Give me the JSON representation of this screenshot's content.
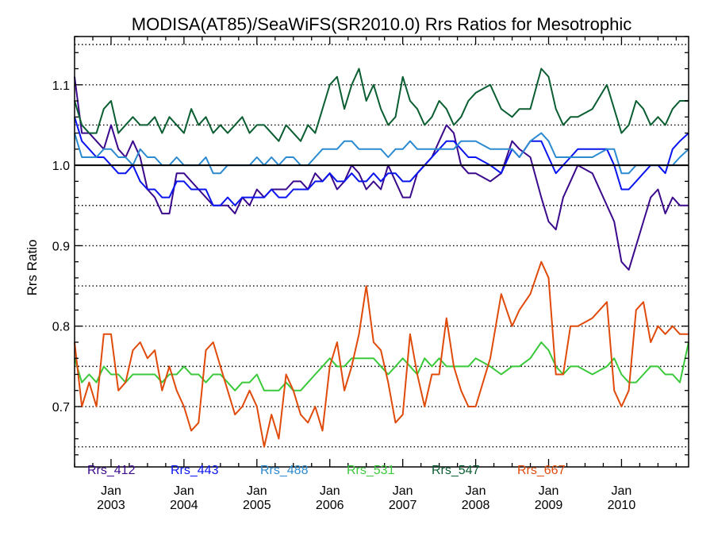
{
  "chart_data": {
    "type": "line",
    "title": "MODISA(AT85)/SeaWiFS(SR2010.0)  Rrs Ratios for Mesotrophic",
    "ylabel": "Rrs Ratio",
    "xlabel": "",
    "xlim": [
      2002.5,
      2010.92
    ],
    "ylim": [
      0.625,
      1.16
    ],
    "y_ticks": [
      0.7,
      0.8,
      0.9,
      1.0,
      1.1
    ],
    "y_tick_labels": [
      "0.7",
      "0.8",
      "0.9",
      "1.0",
      "1.1"
    ],
    "x_ticks": [
      2003,
      2004,
      2005,
      2006,
      2007,
      2008,
      2009,
      2010
    ],
    "x_tick_labels": [
      {
        "month": "Jan",
        "year": "2003"
      },
      {
        "month": "Jan",
        "year": "2004"
      },
      {
        "month": "Jan",
        "year": "2005"
      },
      {
        "month": "Jan",
        "year": "2006"
      },
      {
        "month": "Jan",
        "year": "2007"
      },
      {
        "month": "Jan",
        "year": "2008"
      },
      {
        "month": "Jan",
        "year": "2009"
      },
      {
        "month": "Jan",
        "year": "2010"
      }
    ],
    "grid_y": [
      0.65,
      0.7,
      0.75,
      0.8,
      0.85,
      0.9,
      0.95,
      1.05,
      1.1,
      1.15
    ],
    "reference_line": 1.0,
    "legend_position": "bottom",
    "series": [
      {
        "name": "Rrs_412",
        "color": "#3b0a8c",
        "x": [
          2002.5,
          2002.6,
          2002.7,
          2002.8,
          2002.9,
          2003.0,
          2003.1,
          2003.2,
          2003.3,
          2003.4,
          2003.5,
          2003.6,
          2003.7,
          2003.8,
          2003.9,
          2004.0,
          2004.1,
          2004.2,
          2004.3,
          2004.4,
          2004.5,
          2004.6,
          2004.7,
          2004.8,
          2004.9,
          2005.0,
          2005.1,
          2005.2,
          2005.3,
          2005.4,
          2005.5,
          2005.6,
          2005.7,
          2005.8,
          2005.9,
          2006.0,
          2006.1,
          2006.2,
          2006.3,
          2006.4,
          2006.5,
          2006.6,
          2006.7,
          2006.8,
          2006.9,
          2007.0,
          2007.1,
          2007.2,
          2007.3,
          2007.4,
          2007.5,
          2007.6,
          2007.7,
          2007.8,
          2007.9,
          2008.0,
          2008.2,
          2008.35,
          2008.5,
          2008.6,
          2008.75,
          2008.9,
          2009.0,
          2009.1,
          2009.2,
          2009.3,
          2009.4,
          2009.6,
          2009.8,
          2009.9,
          2010.0,
          2010.1,
          2010.2,
          2010.3,
          2010.4,
          2010.5,
          2010.6,
          2010.7,
          2010.8,
          2010.92
        ],
        "values": [
          1.11,
          1.04,
          1.04,
          1.03,
          1.02,
          1.05,
          1.02,
          1.01,
          1.03,
          1.01,
          0.97,
          0.96,
          0.94,
          0.94,
          0.99,
          0.99,
          0.98,
          0.97,
          0.96,
          0.95,
          0.95,
          0.95,
          0.94,
          0.96,
          0.95,
          0.97,
          0.96,
          0.97,
          0.97,
          0.97,
          0.98,
          0.98,
          0.97,
          0.99,
          0.98,
          0.99,
          0.97,
          0.98,
          1.0,
          0.99,
          0.97,
          0.98,
          0.97,
          1.0,
          0.98,
          0.96,
          0.96,
          0.99,
          1.0,
          1.01,
          1.03,
          1.05,
          1.04,
          1.0,
          0.99,
          0.99,
          0.98,
          0.99,
          1.03,
          1.02,
          1.01,
          0.96,
          0.93,
          0.92,
          0.96,
          0.98,
          1.0,
          0.99,
          0.95,
          0.93,
          0.88,
          0.87,
          0.9,
          0.93,
          0.96,
          0.97,
          0.94,
          0.96,
          0.95,
          0.95
        ]
      },
      {
        "name": "Rrs_443",
        "color": "#0a14ee",
        "x": [
          2002.5,
          2002.6,
          2002.7,
          2002.8,
          2002.9,
          2003.0,
          2003.1,
          2003.2,
          2003.3,
          2003.4,
          2003.5,
          2003.6,
          2003.7,
          2003.8,
          2003.9,
          2004.0,
          2004.1,
          2004.2,
          2004.3,
          2004.4,
          2004.5,
          2004.6,
          2004.7,
          2004.8,
          2004.9,
          2005.0,
          2005.1,
          2005.2,
          2005.3,
          2005.4,
          2005.5,
          2005.6,
          2005.7,
          2005.8,
          2005.9,
          2006.0,
          2006.1,
          2006.2,
          2006.3,
          2006.4,
          2006.5,
          2006.6,
          2006.7,
          2006.8,
          2006.9,
          2007.0,
          2007.1,
          2007.2,
          2007.3,
          2007.4,
          2007.5,
          2007.6,
          2007.7,
          2007.8,
          2007.9,
          2008.0,
          2008.2,
          2008.35,
          2008.5,
          2008.6,
          2008.75,
          2008.9,
          2009.0,
          2009.1,
          2009.2,
          2009.3,
          2009.4,
          2009.6,
          2009.8,
          2009.9,
          2010.0,
          2010.1,
          2010.2,
          2010.3,
          2010.4,
          2010.5,
          2010.6,
          2010.7,
          2010.8,
          2010.92
        ],
        "values": [
          1.06,
          1.03,
          1.02,
          1.01,
          1.01,
          1.0,
          0.99,
          0.99,
          1.0,
          0.98,
          0.97,
          0.97,
          0.96,
          0.96,
          0.98,
          0.98,
          0.97,
          0.97,
          0.97,
          0.95,
          0.95,
          0.96,
          0.95,
          0.96,
          0.96,
          0.96,
          0.96,
          0.97,
          0.96,
          0.96,
          0.97,
          0.97,
          0.97,
          0.98,
          0.98,
          0.99,
          0.98,
          0.98,
          0.99,
          0.98,
          0.98,
          0.99,
          0.98,
          0.99,
          0.99,
          0.98,
          0.98,
          0.99,
          1.0,
          1.01,
          1.02,
          1.03,
          1.03,
          1.02,
          1.01,
          1.01,
          1.0,
          0.99,
          1.02,
          1.01,
          1.03,
          1.03,
          1.01,
          0.99,
          1.0,
          1.01,
          1.02,
          1.02,
          1.02,
          1.0,
          0.97,
          0.97,
          0.98,
          0.99,
          1.0,
          1.0,
          0.99,
          1.02,
          1.03,
          1.04
        ]
      },
      {
        "name": "Rrs_488",
        "color": "#2c8bd0",
        "x": [
          2002.5,
          2002.6,
          2002.7,
          2002.8,
          2002.9,
          2003.0,
          2003.1,
          2003.2,
          2003.3,
          2003.4,
          2003.5,
          2003.6,
          2003.7,
          2003.8,
          2003.9,
          2004.0,
          2004.1,
          2004.2,
          2004.3,
          2004.4,
          2004.5,
          2004.6,
          2004.7,
          2004.8,
          2004.9,
          2005.0,
          2005.1,
          2005.2,
          2005.3,
          2005.4,
          2005.5,
          2005.6,
          2005.7,
          2005.8,
          2005.9,
          2006.0,
          2006.1,
          2006.2,
          2006.3,
          2006.4,
          2006.5,
          2006.6,
          2006.7,
          2006.8,
          2006.9,
          2007.0,
          2007.1,
          2007.2,
          2007.3,
          2007.4,
          2007.5,
          2007.6,
          2007.7,
          2007.8,
          2007.9,
          2008.0,
          2008.2,
          2008.35,
          2008.5,
          2008.6,
          2008.75,
          2008.9,
          2009.0,
          2009.1,
          2009.2,
          2009.3,
          2009.4,
          2009.6,
          2009.8,
          2009.9,
          2010.0,
          2010.1,
          2010.2,
          2010.3,
          2010.4,
          2010.5,
          2010.6,
          2010.7,
          2010.8,
          2010.92
        ],
        "values": [
          1.04,
          1.01,
          1.01,
          1.01,
          1.02,
          1.02,
          1.01,
          1.01,
          1.0,
          1.02,
          1.01,
          1.01,
          1.0,
          1.0,
          1.01,
          1.0,
          1.0,
          1.0,
          1.01,
          0.99,
          0.99,
          1.0,
          1.0,
          1.0,
          1.0,
          1.01,
          1.0,
          1.01,
          1.0,
          1.01,
          1.01,
          1.0,
          1.0,
          1.01,
          1.02,
          1.02,
          1.02,
          1.03,
          1.03,
          1.02,
          1.02,
          1.02,
          1.02,
          1.01,
          1.02,
          1.02,
          1.03,
          1.02,
          1.02,
          1.02,
          1.02,
          1.02,
          1.02,
          1.03,
          1.03,
          1.03,
          1.02,
          1.02,
          1.02,
          1.01,
          1.03,
          1.04,
          1.03,
          1.01,
          1.01,
          1.01,
          1.01,
          1.01,
          1.02,
          1.02,
          0.99,
          0.99,
          1.0,
          1.0,
          1.0,
          1.0,
          1.0,
          1.0,
          1.01,
          1.02
        ]
      },
      {
        "name": "Rrs_531",
        "color": "#3ac93a",
        "x": [
          2002.5,
          2002.6,
          2002.7,
          2002.8,
          2002.9,
          2003.0,
          2003.1,
          2003.2,
          2003.3,
          2003.4,
          2003.5,
          2003.6,
          2003.7,
          2003.8,
          2003.9,
          2004.0,
          2004.1,
          2004.2,
          2004.3,
          2004.4,
          2004.5,
          2004.6,
          2004.7,
          2004.8,
          2004.9,
          2005.0,
          2005.1,
          2005.2,
          2005.3,
          2005.4,
          2005.5,
          2005.6,
          2005.7,
          2005.8,
          2005.9,
          2006.0,
          2006.1,
          2006.2,
          2006.3,
          2006.4,
          2006.5,
          2006.6,
          2006.7,
          2006.8,
          2006.9,
          2007.0,
          2007.1,
          2007.2,
          2007.3,
          2007.4,
          2007.5,
          2007.6,
          2007.7,
          2007.8,
          2007.9,
          2008.0,
          2008.2,
          2008.35,
          2008.5,
          2008.6,
          2008.75,
          2008.9,
          2009.0,
          2009.1,
          2009.2,
          2009.3,
          2009.4,
          2009.6,
          2009.8,
          2009.9,
          2010.0,
          2010.1,
          2010.2,
          2010.3,
          2010.4,
          2010.5,
          2010.6,
          2010.7,
          2010.8,
          2010.92
        ],
        "values": [
          0.76,
          0.73,
          0.74,
          0.73,
          0.75,
          0.74,
          0.74,
          0.73,
          0.74,
          0.74,
          0.74,
          0.74,
          0.73,
          0.74,
          0.74,
          0.75,
          0.74,
          0.74,
          0.73,
          0.74,
          0.74,
          0.73,
          0.72,
          0.73,
          0.73,
          0.74,
          0.72,
          0.72,
          0.72,
          0.73,
          0.72,
          0.72,
          0.73,
          0.74,
          0.75,
          0.76,
          0.75,
          0.75,
          0.76,
          0.76,
          0.76,
          0.76,
          0.75,
          0.74,
          0.75,
          0.76,
          0.75,
          0.74,
          0.76,
          0.75,
          0.76,
          0.75,
          0.75,
          0.75,
          0.75,
          0.76,
          0.75,
          0.74,
          0.75,
          0.75,
          0.76,
          0.78,
          0.77,
          0.75,
          0.74,
          0.75,
          0.75,
          0.74,
          0.75,
          0.76,
          0.74,
          0.73,
          0.73,
          0.74,
          0.75,
          0.75,
          0.74,
          0.74,
          0.73,
          0.78
        ]
      },
      {
        "name": "Rrs_547",
        "color": "#0b5e32",
        "x": [
          2002.5,
          2002.6,
          2002.7,
          2002.8,
          2002.9,
          2003.0,
          2003.1,
          2003.2,
          2003.3,
          2003.4,
          2003.5,
          2003.6,
          2003.7,
          2003.8,
          2003.9,
          2004.0,
          2004.1,
          2004.2,
          2004.3,
          2004.4,
          2004.5,
          2004.6,
          2004.7,
          2004.8,
          2004.9,
          2005.0,
          2005.1,
          2005.2,
          2005.3,
          2005.4,
          2005.5,
          2005.6,
          2005.7,
          2005.8,
          2005.9,
          2006.0,
          2006.1,
          2006.2,
          2006.3,
          2006.4,
          2006.5,
          2006.6,
          2006.7,
          2006.8,
          2006.9,
          2007.0,
          2007.1,
          2007.2,
          2007.3,
          2007.4,
          2007.5,
          2007.6,
          2007.7,
          2007.8,
          2007.9,
          2008.0,
          2008.2,
          2008.35,
          2008.5,
          2008.6,
          2008.75,
          2008.9,
          2009.0,
          2009.1,
          2009.2,
          2009.3,
          2009.4,
          2009.6,
          2009.8,
          2009.9,
          2010.0,
          2010.1,
          2010.2,
          2010.3,
          2010.4,
          2010.5,
          2010.6,
          2010.7,
          2010.8,
          2010.92
        ],
        "values": [
          1.08,
          1.05,
          1.04,
          1.04,
          1.07,
          1.08,
          1.04,
          1.05,
          1.06,
          1.05,
          1.05,
          1.06,
          1.04,
          1.06,
          1.05,
          1.04,
          1.07,
          1.05,
          1.06,
          1.04,
          1.05,
          1.04,
          1.05,
          1.06,
          1.04,
          1.05,
          1.05,
          1.04,
          1.03,
          1.05,
          1.04,
          1.03,
          1.05,
          1.04,
          1.07,
          1.1,
          1.11,
          1.07,
          1.1,
          1.12,
          1.08,
          1.1,
          1.07,
          1.05,
          1.06,
          1.11,
          1.08,
          1.07,
          1.05,
          1.06,
          1.08,
          1.07,
          1.05,
          1.06,
          1.08,
          1.09,
          1.1,
          1.07,
          1.06,
          1.07,
          1.07,
          1.12,
          1.11,
          1.07,
          1.05,
          1.06,
          1.06,
          1.07,
          1.1,
          1.07,
          1.04,
          1.05,
          1.08,
          1.07,
          1.05,
          1.06,
          1.05,
          1.07,
          1.08,
          1.08
        ]
      },
      {
        "name": "Rrs_667",
        "color": "#e04a0a",
        "x": [
          2002.5,
          2002.6,
          2002.7,
          2002.8,
          2002.9,
          2003.0,
          2003.1,
          2003.2,
          2003.3,
          2003.4,
          2003.5,
          2003.6,
          2003.7,
          2003.8,
          2003.9,
          2004.0,
          2004.1,
          2004.2,
          2004.3,
          2004.4,
          2004.5,
          2004.6,
          2004.7,
          2004.8,
          2004.9,
          2005.0,
          2005.1,
          2005.2,
          2005.3,
          2005.4,
          2005.5,
          2005.6,
          2005.7,
          2005.8,
          2005.9,
          2006.0,
          2006.1,
          2006.2,
          2006.3,
          2006.4,
          2006.5,
          2006.6,
          2006.7,
          2006.8,
          2006.9,
          2007.0,
          2007.1,
          2007.2,
          2007.3,
          2007.4,
          2007.5,
          2007.6,
          2007.7,
          2007.8,
          2007.9,
          2008.0,
          2008.2,
          2008.35,
          2008.5,
          2008.6,
          2008.75,
          2008.9,
          2009.0,
          2009.1,
          2009.2,
          2009.3,
          2009.4,
          2009.6,
          2009.8,
          2009.9,
          2010.0,
          2010.1,
          2010.2,
          2010.3,
          2010.4,
          2010.5,
          2010.6,
          2010.7,
          2010.8,
          2010.92
        ],
        "values": [
          0.78,
          0.7,
          0.73,
          0.7,
          0.79,
          0.79,
          0.72,
          0.73,
          0.77,
          0.78,
          0.76,
          0.77,
          0.72,
          0.75,
          0.72,
          0.7,
          0.67,
          0.68,
          0.77,
          0.78,
          0.75,
          0.72,
          0.69,
          0.7,
          0.72,
          0.7,
          0.65,
          0.69,
          0.66,
          0.74,
          0.72,
          0.69,
          0.68,
          0.7,
          0.67,
          0.75,
          0.78,
          0.72,
          0.75,
          0.79,
          0.85,
          0.78,
          0.77,
          0.73,
          0.68,
          0.69,
          0.79,
          0.74,
          0.7,
          0.74,
          0.74,
          0.81,
          0.75,
          0.72,
          0.7,
          0.7,
          0.76,
          0.84,
          0.8,
          0.82,
          0.84,
          0.88,
          0.86,
          0.74,
          0.74,
          0.8,
          0.8,
          0.81,
          0.83,
          0.72,
          0.7,
          0.72,
          0.82,
          0.83,
          0.78,
          0.8,
          0.79,
          0.8,
          0.79,
          0.79
        ]
      }
    ]
  }
}
